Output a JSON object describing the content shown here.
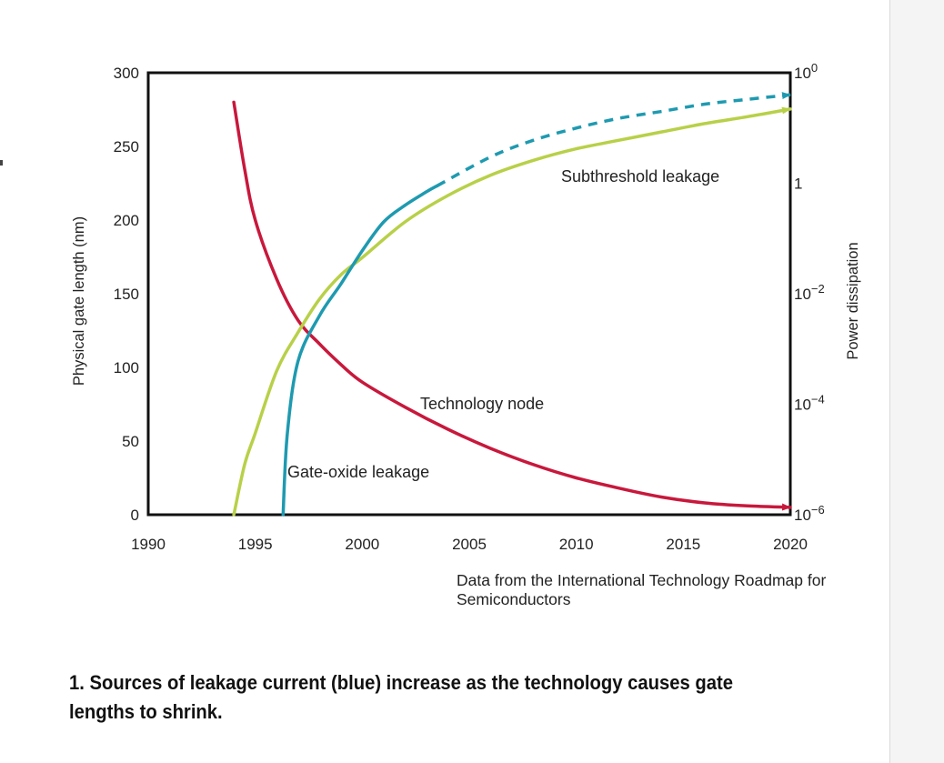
{
  "chart_data": {
    "type": "line",
    "xlabel": "",
    "ylabel": "Physical gate length (nm)",
    "y2label": "Power dissipation",
    "xlim": [
      1990,
      2020
    ],
    "ylim": [
      0,
      300
    ],
    "y2lim": [
      1e-06,
      100
    ],
    "y2scale": "log",
    "grid": false,
    "x_ticks": [
      "1990",
      "1995",
      "2000",
      "2005",
      "2010",
      "2015",
      "2020"
    ],
    "y_ticks": [
      "0",
      "50",
      "100",
      "150",
      "200",
      "250",
      "300"
    ],
    "y2_ticks": [
      {
        "value": 1e-06,
        "label": "10−6"
      },
      {
        "value": 0.0001,
        "label": "10−4"
      },
      {
        "value": 0.01,
        "label": "10−2"
      },
      {
        "value": 1,
        "label": "1"
      },
      {
        "value": 100,
        "label": "100"
      }
    ],
    "series": [
      {
        "name": "Technology node",
        "axis": "left",
        "color": "#c8183c",
        "style": "solid",
        "arrow": true,
        "x": [
          1994,
          1994.5,
          1995,
          1996,
          1997,
          1998,
          1999,
          2000,
          2002,
          2004,
          2006,
          2008,
          2010,
          2012,
          2014,
          2016,
          2018,
          2020
        ],
        "y": [
          280,
          235,
          200,
          160,
          132,
          116,
          102,
          90,
          73,
          58,
          45,
          34,
          25,
          18,
          12,
          8,
          6,
          5
        ]
      },
      {
        "name": "Subthreshold leakage",
        "axis": "right",
        "color": "#b8d048",
        "style": "solid",
        "arrow": true,
        "x": [
          1994,
          1994.5,
          1995,
          1996,
          1997,
          1998,
          1999,
          2000,
          2002,
          2004,
          2006,
          2008,
          2010,
          2012,
          2014,
          2016,
          2018,
          2020
        ],
        "y": [
          1e-06,
          8e-06,
          3e-05,
          0.0004,
          0.002,
          0.008,
          0.022,
          0.045,
          0.2,
          0.6,
          1.4,
          2.6,
          4.2,
          6,
          8.5,
          12,
          16,
          22
        ]
      },
      {
        "name": "Gate-oxide leakage",
        "axis": "right",
        "color": "#1e9ab0",
        "style": "solid then dashed (from ~2003.5)",
        "arrow": true,
        "x": [
          1996.3,
          1996.5,
          1997,
          1998,
          1999,
          2000,
          2001,
          2002,
          2003,
          2003.5,
          2006,
          2008,
          2010,
          2012,
          2014,
          2016,
          2018,
          2020
        ],
        "y": [
          1e-06,
          3e-05,
          0.0006,
          0.004,
          0.015,
          0.06,
          0.2,
          0.4,
          0.7,
          0.9,
          3,
          6,
          10,
          15,
          20,
          27,
          33,
          40
        ]
      }
    ]
  },
  "labels": {
    "subthreshold": "Subthreshold leakage",
    "technology_node": "Technology node",
    "gate_oxide": "Gate-oxide leakage"
  },
  "source_note": "Data from the International Technology Roadmap for Semiconductors",
  "caption": "1. Sources of leakage current (blue) increase as the technology causes gate lengths to shrink."
}
